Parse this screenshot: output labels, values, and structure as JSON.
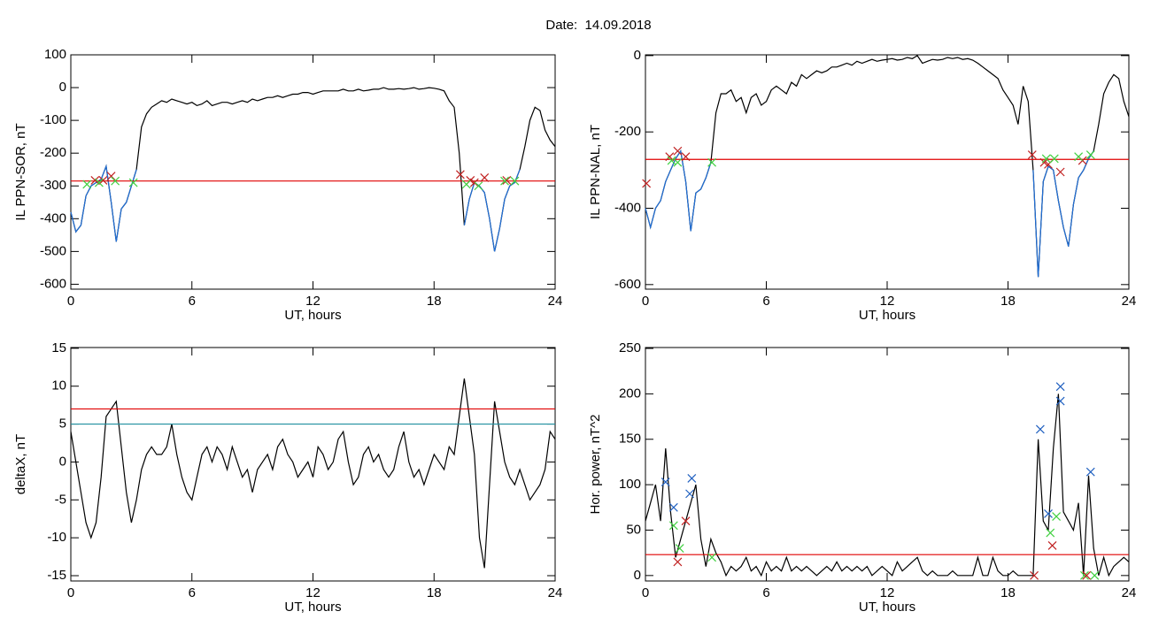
{
  "title": "Date:  14.09.2018",
  "chart_data": [
    {
      "type": "line",
      "ylabel": "IL PPN-SOR, nT",
      "xlabel": "UT, hours",
      "xlim": [
        0,
        24
      ],
      "xticks": [
        0,
        6,
        12,
        18,
        24
      ],
      "ylim": [
        -615,
        100
      ],
      "yticks": [
        100,
        0,
        -100,
        -200,
        -300,
        -400,
        -500,
        -600
      ],
      "x": [
        0,
        0.25,
        0.5,
        0.75,
        1,
        1.25,
        1.5,
        1.75,
        2,
        2.25,
        2.5,
        2.75,
        3,
        3.25,
        3.5,
        3.75,
        4,
        4.25,
        4.5,
        4.75,
        5,
        5.25,
        5.5,
        5.75,
        6,
        6.25,
        6.5,
        6.75,
        7,
        7.25,
        7.5,
        7.75,
        8,
        8.25,
        8.5,
        8.75,
        9,
        9.25,
        9.5,
        9.75,
        10,
        10.25,
        10.5,
        10.75,
        11,
        11.25,
        11.5,
        11.75,
        12,
        12.25,
        12.5,
        12.75,
        13,
        13.25,
        13.5,
        13.75,
        14,
        14.25,
        14.5,
        14.75,
        15,
        15.25,
        15.5,
        15.75,
        16,
        16.25,
        16.5,
        16.75,
        17,
        17.25,
        17.5,
        17.75,
        18,
        18.25,
        18.5,
        18.75,
        19,
        19.25,
        19.5,
        19.75,
        20,
        20.25,
        20.5,
        20.75,
        21,
        21.25,
        21.5,
        21.75,
        22,
        22.25,
        22.5,
        22.75,
        23,
        23.25,
        23.5,
        23.75,
        24
      ],
      "series": [
        {
          "color": "#000000",
          "values": [
            -380,
            -440,
            -420,
            -330,
            -300,
            -290,
            -280,
            -240,
            -350,
            -470,
            -370,
            -350,
            -300,
            -250,
            -120,
            -80,
            -60,
            -50,
            -40,
            -45,
            -35,
            -40,
            -45,
            -50,
            -45,
            -55,
            -50,
            -40,
            -55,
            -50,
            -45,
            -45,
            -50,
            -45,
            -40,
            -45,
            -35,
            -40,
            -35,
            -30,
            -30,
            -25,
            -30,
            -25,
            -20,
            -20,
            -15,
            -15,
            -20,
            -15,
            -10,
            -10,
            -10,
            -10,
            -5,
            -10,
            -10,
            -5,
            -10,
            -8,
            -5,
            -5,
            0,
            -5,
            -5,
            -3,
            -5,
            -3,
            0,
            -5,
            -3,
            0,
            -2,
            -5,
            -10,
            -40,
            -60,
            -200,
            -420,
            -340,
            -290,
            -300,
            -320,
            -400,
            -500,
            -430,
            -340,
            -300,
            -290,
            -250,
            -180,
            -100,
            -60,
            -70,
            -130,
            -160,
            -180
          ]
        },
        {
          "color": "#1f6fd8",
          "x": [
            0,
            0.25,
            0.5,
            0.75,
            1,
            1.25,
            1.5,
            1.75,
            2,
            2.25,
            2.5,
            2.75,
            3,
            3.25
          ],
          "values": [
            -380,
            -440,
            -420,
            -330,
            -300,
            -290,
            -280,
            -240,
            -350,
            -470,
            -370,
            -350,
            -300,
            -250
          ]
        },
        {
          "color": "#1f6fd8",
          "x": [
            19.5,
            19.75,
            20,
            20.25,
            20.5,
            20.75,
            21,
            21.25,
            21.5,
            21.75,
            22,
            22.25
          ],
          "values": [
            -420,
            -340,
            -290,
            -300,
            -320,
            -400,
            -500,
            -430,
            -340,
            -300,
            -290,
            -250
          ]
        }
      ],
      "hlines": [
        {
          "value": -285,
          "color": "#e00000"
        }
      ],
      "markers": [
        {
          "color": "#c02020",
          "x": [
            1.2,
            1.6,
            2.0,
            19.3,
            19.8,
            20.0,
            20.5,
            21.6
          ],
          "y": [
            -283,
            -283,
            -270,
            -265,
            -283,
            -290,
            -275,
            -283
          ]
        },
        {
          "color": "#40d040",
          "x": [
            0.8,
            1.4,
            2.2,
            3.1,
            19.6,
            20.2,
            21.5,
            22.0
          ],
          "y": [
            -295,
            -290,
            -285,
            -290,
            -295,
            -300,
            -285,
            -285
          ]
        }
      ]
    },
    {
      "type": "line",
      "ylabel": "IL PPN-NAL, nT",
      "xlabel": "UT, hours",
      "xlim": [
        0,
        24
      ],
      "xticks": [
        0,
        6,
        12,
        18,
        24
      ],
      "ylim": [
        -612,
        2
      ],
      "yticks": [
        0,
        -200,
        -400,
        -600
      ],
      "x": [
        0,
        0.25,
        0.5,
        0.75,
        1,
        1.25,
        1.5,
        1.75,
        2,
        2.25,
        2.5,
        2.75,
        3,
        3.25,
        3.5,
        3.75,
        4,
        4.25,
        4.5,
        4.75,
        5,
        5.25,
        5.5,
        5.75,
        6,
        6.25,
        6.5,
        6.75,
        7,
        7.25,
        7.5,
        7.75,
        8,
        8.25,
        8.5,
        8.75,
        9,
        9.25,
        9.5,
        9.75,
        10,
        10.25,
        10.5,
        10.75,
        11,
        11.25,
        11.5,
        11.75,
        12,
        12.25,
        12.5,
        12.75,
        13,
        13.25,
        13.5,
        13.75,
        14,
        14.25,
        14.5,
        14.75,
        15,
        15.25,
        15.5,
        15.75,
        16,
        16.25,
        16.5,
        16.75,
        17,
        17.25,
        17.5,
        17.75,
        18,
        18.25,
        18.5,
        18.75,
        19,
        19.25,
        19.5,
        19.75,
        20,
        20.25,
        20.5,
        20.75,
        21,
        21.25,
        21.5,
        21.75,
        22,
        22.25,
        22.5,
        22.75,
        23,
        23.25,
        23.5,
        23.75,
        24
      ],
      "series": [
        {
          "color": "#000000",
          "values": [
            -400,
            -450,
            -400,
            -380,
            -330,
            -300,
            -270,
            -250,
            -330,
            -460,
            -360,
            -350,
            -320,
            -280,
            -150,
            -100,
            -100,
            -90,
            -120,
            -110,
            -150,
            -110,
            -100,
            -130,
            -120,
            -90,
            -80,
            -90,
            -100,
            -70,
            -80,
            -50,
            -60,
            -50,
            -40,
            -45,
            -40,
            -30,
            -30,
            -25,
            -20,
            -25,
            -15,
            -20,
            -15,
            -10,
            -15,
            -12,
            -10,
            -8,
            -12,
            -10,
            -5,
            -8,
            0,
            -20,
            -15,
            -10,
            -12,
            -10,
            -5,
            -8,
            -5,
            -10,
            -8,
            -12,
            -20,
            -30,
            -40,
            -50,
            -60,
            -90,
            -110,
            -130,
            -180,
            -80,
            -120,
            -300,
            -580,
            -330,
            -290,
            -300,
            -380,
            -450,
            -500,
            -390,
            -320,
            -300,
            -270,
            -250,
            -180,
            -100,
            -70,
            -50,
            -60,
            -120,
            -160
          ]
        },
        {
          "color": "#1f6fd8",
          "x": [
            0,
            0.25,
            0.5,
            0.75,
            1,
            1.25,
            1.5,
            1.75,
            2,
            2.25,
            2.5,
            2.75,
            3,
            3.25
          ],
          "values": [
            -400,
            -450,
            -400,
            -380,
            -330,
            -300,
            -270,
            -250,
            -330,
            -460,
            -360,
            -350,
            -320,
            -280
          ]
        },
        {
          "color": "#1f6fd8",
          "x": [
            19.25,
            19.5,
            19.75,
            20,
            20.25,
            20.5,
            20.75,
            21,
            21.25,
            21.5,
            21.75,
            22,
            22.25
          ],
          "values": [
            -300,
            -580,
            -330,
            -290,
            -300,
            -380,
            -450,
            -500,
            -390,
            -320,
            -300,
            -270,
            -250
          ]
        }
      ],
      "hlines": [
        {
          "value": -272,
          "color": "#e00000"
        }
      ],
      "markers": [
        {
          "color": "#c02020",
          "x": [
            0.05,
            1.2,
            1.6,
            2.0,
            19.2,
            19.8,
            20.0,
            20.6,
            21.7
          ],
          "y": [
            -335,
            -265,
            -250,
            -265,
            -260,
            -280,
            -285,
            -305,
            -275
          ]
        },
        {
          "color": "#40d040",
          "x": [
            1.3,
            1.6,
            3.3,
            19.9,
            20.3,
            21.5,
            22.1
          ],
          "y": [
            -275,
            -280,
            -280,
            -270,
            -270,
            -265,
            -260
          ]
        }
      ]
    },
    {
      "type": "line",
      "ylabel": "deltaX, nT",
      "xlabel": "UT, hours",
      "xlim": [
        0,
        24
      ],
      "xticks": [
        0,
        6,
        12,
        18,
        24
      ],
      "ylim": [
        -15.7,
        15.1
      ],
      "yticks": [
        15,
        10,
        5,
        0,
        -5,
        -10,
        -15
      ],
      "x": [
        0,
        0.25,
        0.5,
        0.75,
        1,
        1.25,
        1.5,
        1.75,
        2,
        2.25,
        2.5,
        2.75,
        3,
        3.25,
        3.5,
        3.75,
        4,
        4.25,
        4.5,
        4.75,
        5,
        5.25,
        5.5,
        5.75,
        6,
        6.25,
        6.5,
        6.75,
        7,
        7.25,
        7.5,
        7.75,
        8,
        8.25,
        8.5,
        8.75,
        9,
        9.25,
        9.5,
        9.75,
        10,
        10.25,
        10.5,
        10.75,
        11,
        11.25,
        11.5,
        11.75,
        12,
        12.25,
        12.5,
        12.75,
        13,
        13.25,
        13.5,
        13.75,
        14,
        14.25,
        14.5,
        14.75,
        15,
        15.25,
        15.5,
        15.75,
        16,
        16.25,
        16.5,
        16.75,
        17,
        17.25,
        17.5,
        17.75,
        18,
        18.25,
        18.5,
        18.75,
        19,
        19.25,
        19.5,
        19.75,
        20,
        20.25,
        20.5,
        20.75,
        21,
        21.25,
        21.5,
        21.75,
        22,
        22.25,
        22.5,
        22.75,
        23,
        23.25,
        23.5,
        23.75,
        24
      ],
      "series": [
        {
          "color": "#000000",
          "values": [
            4,
            0,
            -4,
            -8,
            -10,
            -8,
            -2,
            6,
            7,
            8,
            2,
            -4,
            -8,
            -5,
            -1,
            1,
            2,
            1,
            1,
            2,
            5,
            1,
            -2,
            -4,
            -5,
            -2,
            1,
            2,
            0,
            2,
            1,
            -1,
            2,
            0,
            -2,
            -1,
            -4,
            -1,
            0,
            1,
            -1,
            2,
            3,
            1,
            0,
            -2,
            -1,
            0,
            -2,
            2,
            1,
            -1,
            0,
            3,
            4,
            0,
            -3,
            -2,
            1,
            2,
            0,
            1,
            -1,
            -2,
            -1,
            2,
            4,
            0,
            -2,
            -1,
            -3,
            -1,
            1,
            0,
            -1,
            2,
            1,
            6,
            11,
            6,
            1,
            -10,
            -14,
            -3,
            8,
            4,
            0,
            -2,
            -3,
            -1,
            -3,
            -5,
            -4,
            -3,
            -1,
            4,
            3
          ]
        }
      ],
      "hlines": [
        {
          "value": 7,
          "color": "#e00000"
        },
        {
          "value": 5,
          "color": "#1f8f9f"
        }
      ],
      "markers": []
    },
    {
      "type": "line",
      "ylabel": "Hor. power, nT^2",
      "xlabel": "UT, hours",
      "xlim": [
        0,
        24
      ],
      "xticks": [
        0,
        6,
        12,
        18,
        24
      ],
      "ylim": [
        -6,
        251
      ],
      "yticks": [
        250,
        200,
        150,
        100,
        50,
        0
      ],
      "x": [
        0,
        0.25,
        0.5,
        0.75,
        1,
        1.25,
        1.5,
        1.75,
        2,
        2.25,
        2.5,
        2.75,
        3,
        3.25,
        3.5,
        3.75,
        4,
        4.25,
        4.5,
        4.75,
        5,
        5.25,
        5.5,
        5.75,
        6,
        6.25,
        6.5,
        6.75,
        7,
        7.25,
        7.5,
        7.75,
        8,
        8.25,
        8.5,
        8.75,
        9,
        9.25,
        9.5,
        9.75,
        10,
        10.25,
        10.5,
        10.75,
        11,
        11.25,
        11.5,
        11.75,
        12,
        12.25,
        12.5,
        12.75,
        13,
        13.25,
        13.5,
        13.75,
        14,
        14.25,
        14.5,
        14.75,
        15,
        15.25,
        15.5,
        15.75,
        16,
        16.25,
        16.5,
        16.75,
        17,
        17.25,
        17.5,
        17.75,
        18,
        18.25,
        18.5,
        18.75,
        19,
        19.25,
        19.5,
        19.75,
        20,
        20.25,
        20.5,
        20.75,
        21,
        21.25,
        21.5,
        21.75,
        22,
        22.25,
        22.5,
        22.75,
        23,
        23.25,
        23.5,
        23.75,
        24
      ],
      "series": [
        {
          "color": "#000000",
          "values": [
            60,
            80,
            100,
            60,
            140,
            70,
            20,
            40,
            60,
            80,
            100,
            40,
            10,
            40,
            25,
            15,
            0,
            10,
            5,
            10,
            20,
            5,
            10,
            0,
            15,
            5,
            10,
            5,
            20,
            5,
            10,
            5,
            10,
            5,
            0,
            5,
            10,
            5,
            15,
            5,
            10,
            5,
            10,
            5,
            10,
            0,
            5,
            10,
            5,
            0,
            15,
            5,
            10,
            15,
            20,
            5,
            0,
            5,
            0,
            0,
            0,
            5,
            0,
            0,
            0,
            0,
            20,
            0,
            0,
            20,
            5,
            0,
            0,
            5,
            0,
            0,
            0,
            0,
            150,
            60,
            50,
            140,
            200,
            70,
            60,
            50,
            80,
            0,
            110,
            30,
            0,
            20,
            0,
            10,
            15,
            20,
            15
          ]
        }
      ],
      "hlines": [
        {
          "value": 23,
          "color": "#e00000"
        }
      ],
      "markers": [
        {
          "color": "#2060c0",
          "x": [
            1.0,
            1.4,
            2.2,
            2.3,
            19.6,
            20.0,
            20.6,
            20.6,
            22.1
          ],
          "y": [
            103,
            75,
            90,
            107,
            161,
            68,
            208,
            192,
            114
          ]
        },
        {
          "color": "#40d040",
          "x": [
            1.4,
            1.7,
            3.3,
            20.1,
            20.4,
            21.8,
            22.3
          ],
          "y": [
            55,
            30,
            20,
            47,
            65,
            0,
            0
          ]
        },
        {
          "color": "#c02020",
          "x": [
            1.6,
            2.0,
            19.3,
            20.2,
            21.9
          ],
          "y": [
            15,
            60,
            0,
            33,
            0
          ]
        }
      ]
    }
  ]
}
